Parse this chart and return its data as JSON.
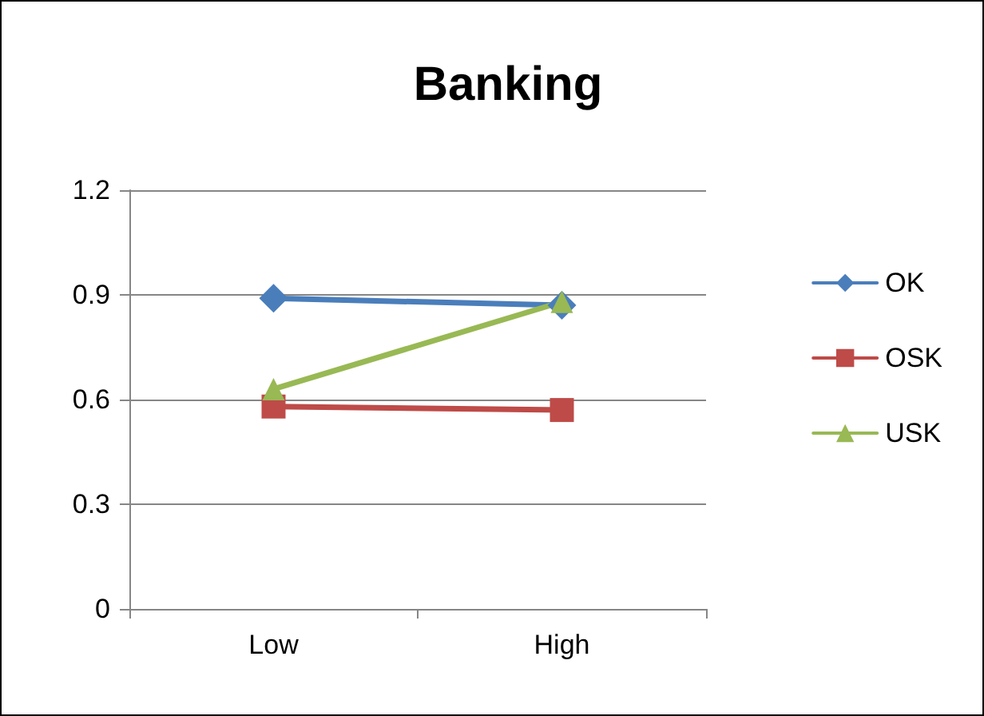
{
  "chart_data": {
    "type": "line",
    "title": "Banking",
    "categories": [
      "Low",
      "High"
    ],
    "series": [
      {
        "name": "OK",
        "color": "#4a7ebb",
        "values": [
          0.89,
          0.87
        ],
        "marker": "diamond"
      },
      {
        "name": "OSK",
        "color": "#be4b48",
        "values": [
          0.58,
          0.57
        ],
        "marker": "square"
      },
      {
        "name": "USK",
        "color": "#98b954",
        "values": [
          0.63,
          0.88
        ],
        "marker": "triangle"
      }
    ],
    "ylim": [
      0,
      1.2
    ],
    "yticks": [
      0,
      0.3,
      0.6,
      0.9,
      1.2
    ],
    "grid": "y",
    "legend": "right",
    "line_style": "solid"
  }
}
